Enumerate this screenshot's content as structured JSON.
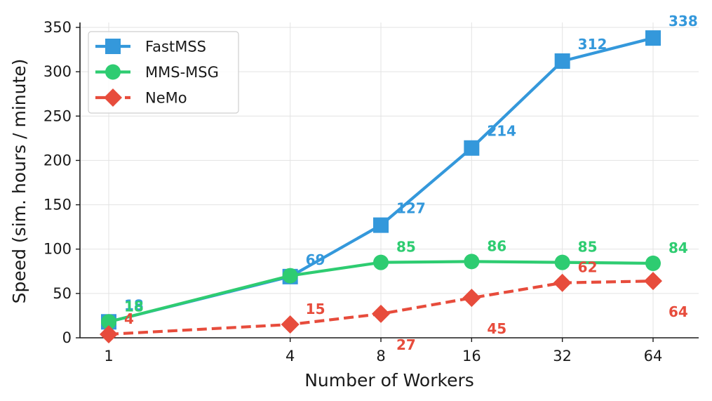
{
  "chart_data": {
    "type": "line",
    "title": "",
    "xlabel": "Number of Workers",
    "ylabel": "Speed (sim. hours / minute)",
    "x_scale": "log2",
    "x": [
      1,
      4,
      8,
      16,
      32,
      64
    ],
    "x_tick_labels": [
      "1",
      "4",
      "8",
      "16",
      "32",
      "64"
    ],
    "ylim": [
      0,
      355
    ],
    "y_ticks": [
      0,
      50,
      100,
      150,
      200,
      250,
      300,
      350
    ],
    "y_tick_labels": [
      "0",
      "50",
      "100",
      "150",
      "200",
      "250",
      "300",
      "350"
    ],
    "grid": true,
    "legend_position": "top-left",
    "series": [
      {
        "name": "FastMSS",
        "values": [
          18,
          69,
          127,
          214,
          312,
          338
        ],
        "labels": [
          "18",
          "69",
          "127",
          "214",
          "312",
          "338"
        ],
        "color": "#3498db",
        "marker": "square",
        "line_style": "solid"
      },
      {
        "name": "MMS-MSG",
        "values": [
          18,
          70,
          85,
          86,
          85,
          84
        ],
        "labels": [
          "18",
          "",
          "85",
          "86",
          "85",
          "84"
        ],
        "color": "#2ecc71",
        "marker": "circle",
        "line_style": "solid"
      },
      {
        "name": "NeMo",
        "values": [
          4,
          15,
          27,
          45,
          62,
          64
        ],
        "labels": [
          "4",
          "15",
          "27",
          "45",
          "62",
          "64"
        ],
        "color": "#e74c3c",
        "marker": "diamond",
        "line_style": "dashed"
      }
    ]
  }
}
